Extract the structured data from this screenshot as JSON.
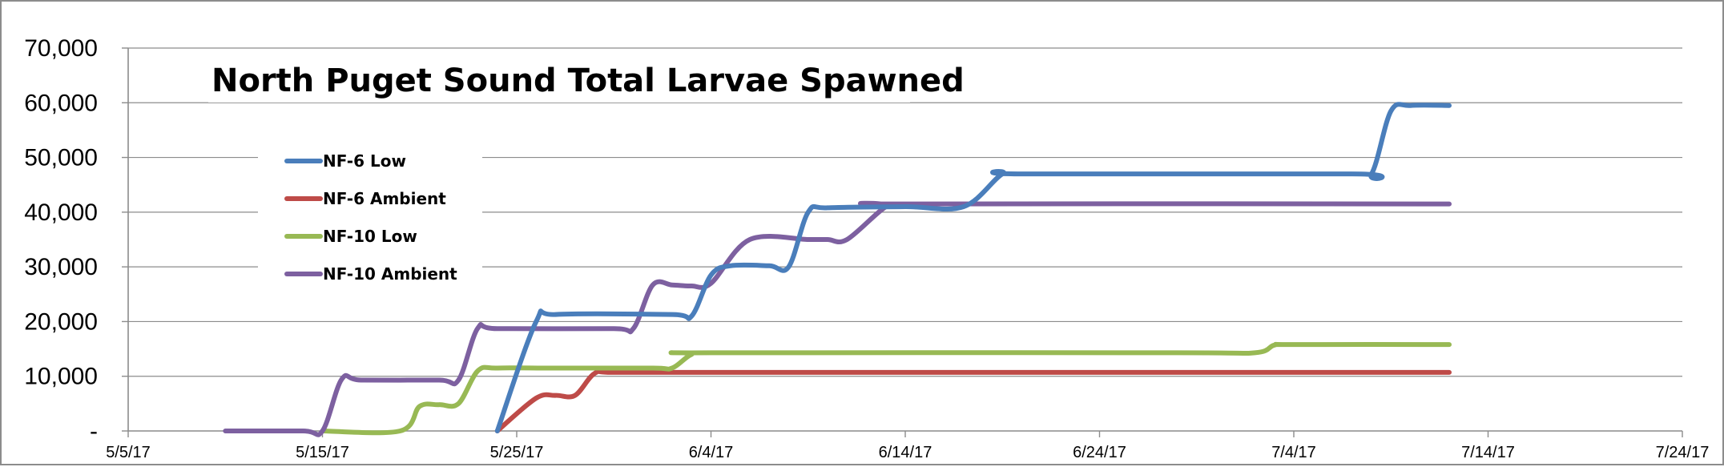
{
  "chart_data": {
    "type": "line",
    "title": "North Puget Sound Total Larvae Spawned",
    "xlabel": "",
    "ylabel": "",
    "x_ticks": [
      "5/5/17",
      "5/15/17",
      "5/25/17",
      "6/4/17",
      "6/14/17",
      "6/24/17",
      "7/4/17",
      "7/14/17",
      "7/24/17"
    ],
    "y_ticks": [
      "-",
      "10,000",
      "20,000",
      "30,000",
      "40,000",
      "50,000",
      "60,000",
      "70,000"
    ],
    "xlim": [
      "5/5/17",
      "7/24/17"
    ],
    "ylim": [
      0,
      70000
    ],
    "grid": true,
    "legend_position": "top-left",
    "series": [
      {
        "name": "NF-6 Low",
        "color": "#4a7ebb",
        "points": [
          [
            "5/24/17",
            0
          ],
          [
            "5/26/17",
            20000
          ],
          [
            "5/27/17",
            21300
          ],
          [
            "6/2/17",
            21300
          ],
          [
            "6/3/17",
            21000
          ],
          [
            "6/4/17",
            28500
          ],
          [
            "6/5/17",
            30200
          ],
          [
            "6/7/17",
            30200
          ],
          [
            "6/8/17",
            30000
          ],
          [
            "6/9/17",
            40000
          ],
          [
            "6/10/17",
            40800
          ],
          [
            "6/14/17",
            41000
          ],
          [
            "6/17/17",
            41000
          ],
          [
            "6/19/17",
            47000
          ],
          [
            "6/20/17",
            47000
          ],
          [
            "7/7/17",
            47000
          ],
          [
            "7/8/17",
            47000
          ],
          [
            "7/9/17",
            58500
          ],
          [
            "7/10/17",
            59500
          ],
          [
            "7/12/17",
            59500
          ]
        ]
      },
      {
        "name": "NF-6 Ambient",
        "color": "#be4b48",
        "points": [
          [
            "5/24/17",
            0
          ],
          [
            "5/26/17",
            6000
          ],
          [
            "5/27/17",
            6500
          ],
          [
            "5/28/17",
            6500
          ],
          [
            "5/29/17",
            10500
          ],
          [
            "5/30/17",
            10700
          ],
          [
            "6/4/17",
            10700
          ],
          [
            "7/12/17",
            10700
          ]
        ]
      },
      {
        "name": "NF-10 Low",
        "color": "#98b954",
        "points": [
          [
            "5/15/17",
            0
          ],
          [
            "5/19/17",
            0
          ],
          [
            "5/20/17",
            4500
          ],
          [
            "5/21/17",
            4800
          ],
          [
            "5/22/17",
            5000
          ],
          [
            "5/23/17",
            11000
          ],
          [
            "5/24/17",
            11500
          ],
          [
            "5/27/17",
            11500
          ],
          [
            "6/1/17",
            11500
          ],
          [
            "6/2/17",
            11500
          ],
          [
            "6/3/17",
            14000
          ],
          [
            "6/4/17",
            14300
          ],
          [
            "6/28/17",
            14300
          ],
          [
            "7/2/17",
            14300
          ],
          [
            "7/3/17",
            15700
          ],
          [
            "7/4/17",
            15800
          ],
          [
            "7/12/17",
            15800
          ]
        ]
      },
      {
        "name": "NF-10 Ambient",
        "color": "#7d60a0",
        "points": [
          [
            "5/10/17",
            0
          ],
          [
            "5/14/17",
            0
          ],
          [
            "5/15/17",
            0
          ],
          [
            "5/16/17",
            9500
          ],
          [
            "5/17/17",
            9300
          ],
          [
            "5/21/17",
            9300
          ],
          [
            "5/22/17",
            9300
          ],
          [
            "5/23/17",
            18800
          ],
          [
            "5/24/17",
            18700
          ],
          [
            "5/30/17",
            18700
          ],
          [
            "5/31/17",
            18700
          ],
          [
            "6/1/17",
            26700
          ],
          [
            "6/2/17",
            26700
          ],
          [
            "6/3/17",
            26500
          ],
          [
            "6/4/17",
            27000
          ],
          [
            "6/6/17",
            35000
          ],
          [
            "6/9/17",
            35000
          ],
          [
            "6/10/17",
            35000
          ],
          [
            "6/11/17",
            35000
          ],
          [
            "6/13/17",
            41000
          ],
          [
            "6/14/17",
            41500
          ],
          [
            "7/12/17",
            41500
          ]
        ]
      }
    ]
  }
}
